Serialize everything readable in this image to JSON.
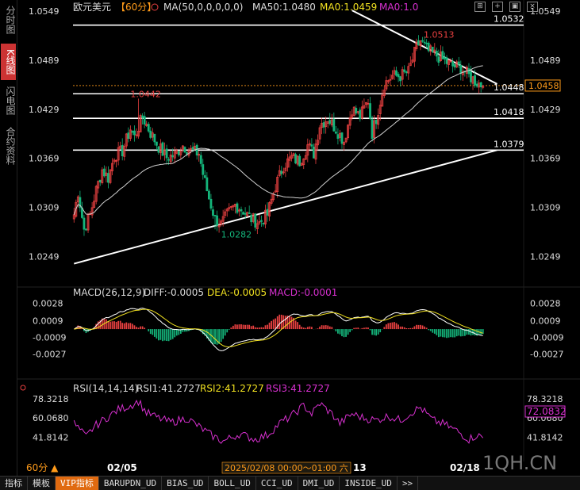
{
  "sidebar": {
    "tabs": [
      {
        "label": "分时图",
        "active": false
      },
      {
        "label": "K线图",
        "active": true
      },
      {
        "label": "闪电图",
        "active": false
      },
      {
        "label": "合约资料",
        "active": false
      }
    ]
  },
  "header": {
    "symbol": "欧元美元",
    "period": "【60分】",
    "ma_formula": "MA(50,0,0,0,0,0)",
    "ma50": "MA50:1.0480",
    "ma0a": "MA0:1.0459",
    "ma0b": "MA0:1.0"
  },
  "colors": {
    "up": "#e84040",
    "down": "#14b47a",
    "ma50": "#d0d0d0",
    "dif": "#ffffff",
    "dea": "#f0e020",
    "rsi": "#d830d0",
    "price_tag": "#ff9b1a"
  },
  "main_axis": {
    "ticks": [
      "1.0549",
      "1.0489",
      "1.0429",
      "1.0369",
      "1.0309",
      "1.0249"
    ],
    "current_price": "1.0458"
  },
  "annotations": {
    "high_label": "1.0513",
    "left_high_label": "1.0442",
    "low_label": "1.0282",
    "level_1": "1.0532",
    "level_2": "1.0448",
    "level_3": "1.0418",
    "level_4": "1.0379"
  },
  "macd": {
    "title": "MACD(26,12,9)",
    "diff": "DIFF:-0.0005",
    "dea": "DEA:-0.0005",
    "macd": "MACD:-0.0001",
    "ticks": [
      "0.0028",
      "0.0009",
      "-0.0009",
      "-0.0027"
    ]
  },
  "rsi": {
    "title": "RSI(14,14,14)",
    "rsi1": "RSI1:41.2727",
    "rsi2": "RSI2:41.2727",
    "rsi3": "RSI3:41.2727",
    "ticks": [
      "78.3218",
      "60.0680",
      "41.8142"
    ],
    "current": "72.0832"
  },
  "footer": {
    "period": "60分 ▲",
    "date_left": "02/05",
    "cursor_time": "2025/02/08 00:00～01:00 六",
    "date_mid": "13",
    "date_right": "02/18",
    "watermark": "1QH.CN"
  },
  "bottom_tabs": [
    "指标",
    "模板",
    "VIP指标",
    "BARUPDN_UD",
    "BIAS_UD",
    "BOLL_UD",
    "CCI_UD",
    "DMI_UD",
    "INSIDE_UD",
    ">>"
  ],
  "chart_data": {
    "type": "candlestick",
    "series_note": "EUR/USD 60-minute; anchors of close path (bar index, price)",
    "close_anchors": [
      [
        0,
        1.03
      ],
      [
        2,
        1.0328
      ],
      [
        5,
        1.0282
      ],
      [
        8,
        1.03
      ],
      [
        11,
        1.033
      ],
      [
        14,
        1.0355
      ],
      [
        17,
        1.0345
      ],
      [
        20,
        1.0372
      ],
      [
        24,
        1.0378
      ],
      [
        28,
        1.0405
      ],
      [
        30,
        1.0395
      ],
      [
        34,
        1.042
      ],
      [
        38,
        1.04
      ],
      [
        42,
        1.0383
      ],
      [
        46,
        1.037
      ],
      [
        50,
        1.0373
      ],
      [
        54,
        1.0385
      ],
      [
        58,
        1.0378
      ],
      [
        62,
        1.0375
      ],
      [
        64,
        1.035
      ],
      [
        67,
        1.032
      ],
      [
        70,
        1.0295
      ],
      [
        73,
        1.0288
      ],
      [
        76,
        1.03
      ],
      [
        80,
        1.0312
      ],
      [
        84,
        1.0305
      ],
      [
        88,
        1.0295
      ],
      [
        92,
        1.029
      ],
      [
        96,
        1.03
      ],
      [
        100,
        1.0335
      ],
      [
        104,
        1.036
      ],
      [
        108,
        1.037
      ],
      [
        112,
        1.0365
      ],
      [
        116,
        1.0385
      ],
      [
        119,
        1.0375
      ],
      [
        122,
        1.041
      ],
      [
        126,
        1.0418
      ],
      [
        130,
        1.0405
      ],
      [
        134,
        1.039
      ],
      [
        138,
        1.043
      ],
      [
        142,
        1.042
      ],
      [
        146,
        1.044
      ],
      [
        148,
        1.04
      ],
      [
        150,
        1.0418
      ],
      [
        154,
        1.046
      ],
      [
        158,
        1.047
      ],
      [
        162,
        1.047
      ],
      [
        166,
        1.0475
      ],
      [
        170,
        1.0505
      ],
      [
        172,
        1.0513
      ],
      [
        176,
        1.05
      ],
      [
        180,
        1.0495
      ],
      [
        184,
        1.0488
      ],
      [
        188,
        1.0482
      ],
      [
        192,
        1.048
      ],
      [
        196,
        1.047
      ],
      [
        200,
        1.0462
      ],
      [
        203,
        1.0458
      ]
    ],
    "highs": [
      {
        "bar": 32,
        "price": 1.0442
      },
      {
        "bar": 172,
        "price": 1.0513
      }
    ],
    "lows": [
      {
        "bar": 70,
        "price": 1.0282
      }
    ],
    "horizontal_levels": [
      1.0532,
      1.0448,
      1.0418,
      1.0379
    ],
    "dashed_price": 1.0458,
    "trendlines": [
      {
        "from": [
          0,
          1.024
        ],
        "to": [
          210,
          1.0379
        ]
      },
      {
        "from": [
          138,
          1.055
        ],
        "to": [
          210,
          1.046
        ]
      }
    ],
    "ma50_latest": 1.048,
    "ylim": [
      1.0225,
      1.0555
    ],
    "macd_ylim": [
      -0.0035,
      0.003
    ],
    "rsi_ylim": [
      28,
      82
    ],
    "rsi_anchors": [
      [
        0,
        55
      ],
      [
        6,
        42
      ],
      [
        10,
        52
      ],
      [
        16,
        60
      ],
      [
        22,
        68
      ],
      [
        28,
        72
      ],
      [
        32,
        76
      ],
      [
        36,
        65
      ],
      [
        42,
        60
      ],
      [
        48,
        56
      ],
      [
        56,
        60
      ],
      [
        62,
        52
      ],
      [
        68,
        44
      ],
      [
        74,
        38
      ],
      [
        82,
        45
      ],
      [
        90,
        40
      ],
      [
        96,
        44
      ],
      [
        102,
        55
      ],
      [
        108,
        62
      ],
      [
        114,
        72
      ],
      [
        118,
        64
      ],
      [
        122,
        74
      ],
      [
        128,
        64
      ],
      [
        132,
        55
      ],
      [
        138,
        64
      ],
      [
        144,
        60
      ],
      [
        150,
        58
      ],
      [
        156,
        62
      ],
      [
        162,
        58
      ],
      [
        168,
        66
      ],
      [
        172,
        70
      ],
      [
        178,
        58
      ],
      [
        184,
        54
      ],
      [
        190,
        48
      ],
      [
        196,
        40
      ],
      [
        200,
        44
      ],
      [
        203,
        41.27
      ]
    ]
  }
}
